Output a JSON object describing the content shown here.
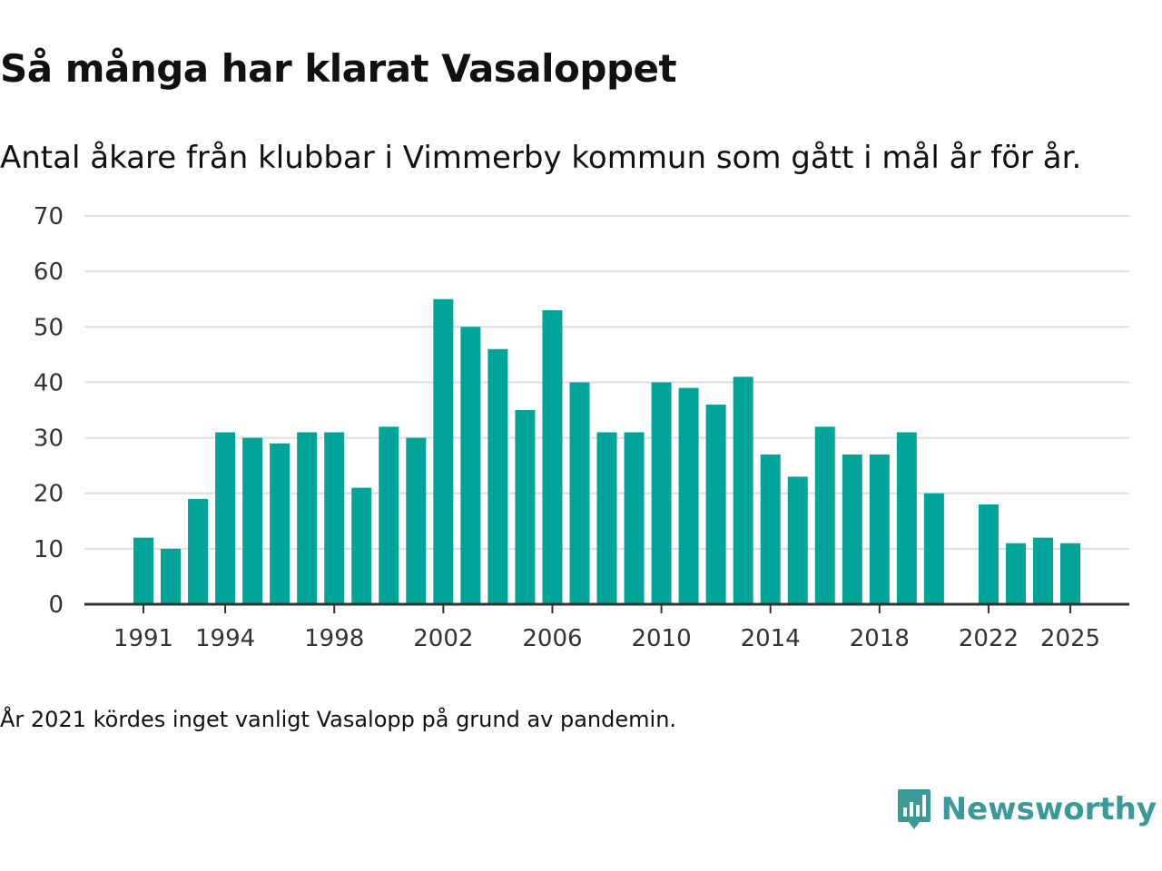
{
  "title": "Så många har klarat Vasaloppet",
  "subtitle": "Antal åkare från klubbar i Vimmerby kommun som gått i mål år för år.",
  "note": "År 2021 kördes inget vanligt Vasalopp på grund av pandemin.",
  "brand": {
    "name": "Newsworthy",
    "logo_icon": "newsworthy-chart-bubble-icon"
  },
  "colors": {
    "bar": "#00a499",
    "grid": "#dddddd",
    "axis": "#333333",
    "brand": "#3a9a97"
  },
  "chart_data": {
    "type": "bar",
    "title": "Så många har klarat Vasaloppet",
    "xlabel": "",
    "ylabel": "",
    "ylim": [
      0,
      70
    ],
    "yticks": [
      0,
      10,
      20,
      30,
      40,
      50,
      60,
      70
    ],
    "xtick_labels": [
      "1991",
      "1994",
      "1998",
      "2002",
      "2006",
      "2010",
      "2014",
      "2018",
      "2022",
      "2025"
    ],
    "grid": true,
    "categories": [
      1991,
      1992,
      1993,
      1994,
      1995,
      1996,
      1997,
      1998,
      1999,
      2000,
      2001,
      2002,
      2003,
      2004,
      2005,
      2006,
      2007,
      2008,
      2009,
      2010,
      2011,
      2012,
      2013,
      2014,
      2015,
      2016,
      2017,
      2018,
      2019,
      2020,
      2021,
      2022,
      2023,
      2024,
      2025
    ],
    "values": [
      12,
      10,
      19,
      31,
      30,
      29,
      31,
      31,
      21,
      32,
      30,
      55,
      50,
      46,
      35,
      53,
      40,
      31,
      31,
      40,
      39,
      36,
      41,
      27,
      23,
      32,
      27,
      27,
      31,
      20,
      null,
      18,
      11,
      12,
      11
    ]
  }
}
